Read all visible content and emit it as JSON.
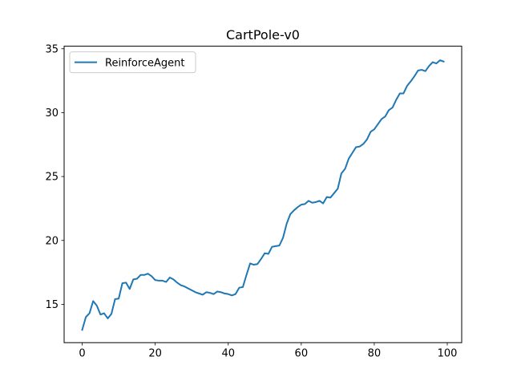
{
  "chart_data": {
    "type": "line",
    "title": "CartPole-v0",
    "xlabel": "",
    "ylabel": "",
    "xlim": [
      -4.95,
      103.95
    ],
    "ylim": [
      12.0,
      35.2
    ],
    "xticks": [
      0,
      20,
      40,
      60,
      80,
      100
    ],
    "yticks": [
      15,
      20,
      25,
      30,
      35
    ],
    "grid": false,
    "legend_position": "top-left",
    "colors": {
      "series": "#1f77b4",
      "axes": "#000000",
      "background": "#ffffff"
    },
    "series": [
      {
        "name": "ReinforceAgent",
        "x": [
          0,
          1,
          2,
          3,
          4,
          5,
          6,
          7,
          8,
          9,
          10,
          11,
          12,
          13,
          14,
          15,
          16,
          17,
          18,
          19,
          20,
          21,
          22,
          23,
          24,
          25,
          26,
          27,
          28,
          29,
          30,
          31,
          32,
          33,
          34,
          35,
          36,
          37,
          38,
          39,
          40,
          41,
          42,
          43,
          44,
          45,
          46,
          47,
          48,
          49,
          50,
          51,
          52,
          53,
          54,
          55,
          56,
          57,
          58,
          59,
          60,
          61,
          62,
          63,
          64,
          65,
          66,
          67,
          68,
          69,
          70,
          71,
          72,
          73,
          74,
          75,
          76,
          77,
          78,
          79,
          80,
          81,
          82,
          83,
          84,
          85,
          86,
          87,
          88,
          89,
          90,
          91,
          92,
          93,
          94,
          95,
          96,
          97,
          98,
          99
        ],
        "values": [
          13.0,
          14.0,
          14.3,
          15.25,
          14.9,
          14.2,
          14.3,
          13.9,
          14.25,
          15.4,
          15.45,
          16.65,
          16.7,
          16.2,
          16.95,
          17.0,
          17.3,
          17.3,
          17.4,
          17.2,
          16.9,
          16.85,
          16.85,
          16.75,
          17.1,
          16.95,
          16.7,
          16.5,
          16.4,
          16.25,
          16.1,
          15.95,
          15.85,
          15.75,
          15.95,
          15.9,
          15.8,
          16.0,
          15.95,
          15.85,
          15.8,
          15.7,
          15.8,
          16.3,
          16.35,
          17.3,
          18.2,
          18.1,
          18.15,
          18.55,
          19.0,
          18.95,
          19.5,
          19.55,
          19.6,
          20.2,
          21.3,
          22.05,
          22.35,
          22.6,
          22.8,
          22.85,
          23.1,
          22.95,
          23.0,
          23.1,
          22.9,
          23.4,
          23.35,
          23.7,
          24.05,
          25.25,
          25.6,
          26.4,
          26.85,
          27.3,
          27.35,
          27.55,
          27.9,
          28.5,
          28.7,
          29.1,
          29.5,
          29.7,
          30.2,
          30.4,
          31.0,
          31.5,
          31.5,
          32.1,
          32.45,
          32.85,
          33.3,
          33.35,
          33.25,
          33.65,
          33.95,
          33.85,
          34.1,
          34.0
        ]
      }
    ]
  }
}
